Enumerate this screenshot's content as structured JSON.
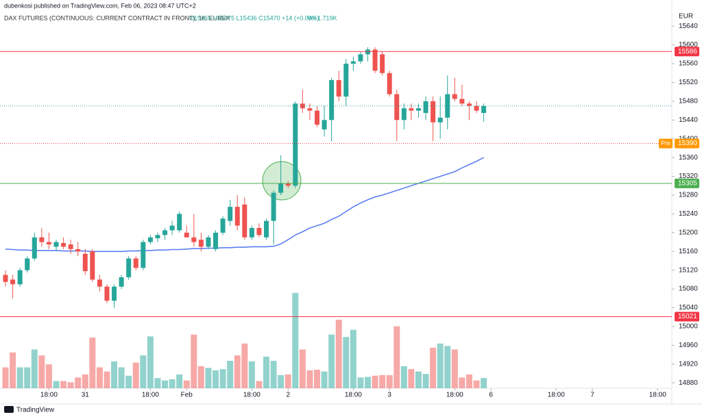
{
  "header": {
    "published": "dubenkosi published on TradingView.com, Feb 06, 2023 08:47 UTC+2",
    "symbol": "DAX FUTURES (CONTINUOUS: CURRENT CONTRACT IN FRONT), 1h, EUREX",
    "ohlc": "O15455 H15475 L15436 C15470 +14 (+0.09%)",
    "volume": "Vol 1.719K",
    "currency": "EUR",
    "brand": "TradingView"
  },
  "chart_data": {
    "type": "candlestick",
    "open": [
      15110,
      15100,
      15090,
      15120,
      15145,
      15190,
      15180,
      15170,
      15178,
      15175,
      15165,
      15155,
      15160,
      15100,
      15085,
      15055,
      15085,
      15105,
      15145,
      15125,
      15180,
      15188,
      15195,
      15205,
      15205,
      15200,
      15190,
      15185,
      15170,
      15165,
      15200,
      15225,
      15255,
      15260,
      15190,
      15210,
      15190,
      15225,
      15285,
      15305,
      15300,
      15475,
      15465,
      15460,
      15420,
      15440,
      15525,
      15490,
      15560,
      15565,
      15580,
      15590,
      15580,
      15540,
      15495,
      15440,
      15465,
      15460,
      15455,
      15480,
      15435,
      15445,
      15495,
      15485,
      15475,
      15470,
      15455
    ],
    "high": [
      15120,
      15110,
      15125,
      15150,
      15200,
      15210,
      15200,
      15185,
      15190,
      15185,
      15180,
      15165,
      15165,
      15110,
      15090,
      15090,
      15110,
      15150,
      15150,
      15185,
      15195,
      15200,
      15210,
      15225,
      15245,
      15215,
      15240,
      15200,
      15195,
      15205,
      15235,
      15270,
      15280,
      15275,
      15215,
      15220,
      15230,
      15290,
      15365,
      15310,
      15480,
      15505,
      15475,
      15470,
      15470,
      15530,
      15545,
      15570,
      15575,
      15585,
      15595,
      15595,
      15585,
      15545,
      15505,
      15475,
      15475,
      15475,
      15490,
      15490,
      15490,
      15535,
      15530,
      15515,
      15480,
      15480,
      15475
    ],
    "low": [
      15085,
      15060,
      15085,
      15115,
      15140,
      15170,
      15165,
      15160,
      15165,
      15155,
      15150,
      15110,
      15095,
      15075,
      15050,
      15040,
      15080,
      15100,
      15120,
      15120,
      15175,
      15180,
      15185,
      15195,
      15200,
      15190,
      15170,
      15160,
      15165,
      15160,
      15195,
      15215,
      15205,
      15185,
      15185,
      15190,
      15185,
      15175,
      15280,
      15295,
      15295,
      15455,
      15440,
      15425,
      15405,
      15395,
      15480,
      15470,
      15545,
      15560,
      15565,
      15540,
      15535,
      15490,
      15395,
      15420,
      15440,
      15445,
      15440,
      15395,
      15400,
      15420,
      15480,
      15470,
      15440,
      15455,
      15436
    ],
    "close": [
      15095,
      15090,
      15120,
      15145,
      15190,
      15180,
      15175,
      15180,
      15170,
      15165,
      15160,
      15118,
      15100,
      15085,
      15055,
      15085,
      15105,
      15145,
      15125,
      15180,
      15190,
      15195,
      15205,
      15215,
      15240,
      15190,
      15180,
      15170,
      15190,
      15200,
      15230,
      15255,
      15215,
      15190,
      15210,
      15195,
      15225,
      15285,
      15305,
      15300,
      15475,
      15465,
      15460,
      15430,
      15440,
      15525,
      15490,
      15560,
      15565,
      15580,
      15590,
      15545,
      15540,
      15495,
      15440,
      15465,
      15460,
      15465,
      15480,
      15435,
      15445,
      15495,
      15485,
      15475,
      15470,
      15460,
      15470
    ],
    "volume": [
      3.5,
      6,
      3.5,
      3.5,
      6.5,
      5.5,
      4,
      1.2,
      1.2,
      1,
      1.8,
      2.3,
      8.5,
      3.5,
      2.8,
      4.5,
      3.5,
      2.1,
      4.3,
      5.5,
      8.7,
      1.7,
      1.3,
      1.5,
      2.3,
      1.3,
      9,
      3.7,
      3.4,
      3,
      3.2,
      4.6,
      5.5,
      7.5,
      4.5,
      1.2,
      5.3,
      4.6,
      2.2,
      2.3,
      16,
      6.5,
      3,
      3.1,
      2.8,
      9,
      11.5,
      8.6,
      9.8,
      1.8,
      1.9,
      2.1,
      2.2,
      2.2,
      10.4,
      3.7,
      3.2,
      2.8,
      2.4,
      6.8,
      7.5,
      7.1,
      6.5,
      1.8,
      2.3,
      1.3,
      1.719
    ],
    "ma_values": [
      15165,
      15164,
      15163,
      15163,
      15162,
      15162,
      15162,
      15162,
      15161,
      15161,
      15161,
      15161,
      15160,
      15160,
      15160,
      15160,
      15160,
      15161,
      15161,
      15162,
      15162,
      15163,
      15163,
      15164,
      15164,
      15165,
      15166,
      15166,
      15167,
      15167,
      15168,
      15168,
      15169,
      15169,
      15170,
      15170,
      15170,
      15171,
      15176,
      15185,
      15195,
      15202,
      15210,
      15215,
      15220,
      15228,
      15235,
      15245,
      15255,
      15263,
      15270,
      15276,
      15280,
      15285,
      15290,
      15295,
      15300,
      15305,
      15310,
      15315,
      15320,
      15325,
      15330,
      15338,
      15345,
      15352,
      15360
    ],
    "ma_color": "#5b7ff0",
    "up_color": "#26a69a",
    "down_color": "#ef5350",
    "levels": [
      {
        "value": 15586,
        "color": "#f23645",
        "dashed": false
      },
      {
        "value": 15470,
        "color": "#26a69a",
        "dashed": true,
        "show_label": false
      },
      {
        "value": 15390,
        "color": "#f23645",
        "dashed": true,
        "label_color": "#ff9800",
        "tag": "Pre"
      },
      {
        "value": 15305,
        "color": "#4caf50",
        "dashed": false
      },
      {
        "value": 15021,
        "color": "#f23645",
        "dashed": false
      }
    ],
    "ylim": [
      14857,
      15684
    ],
    "yticks": [
      15640,
      15600,
      15560,
      15520,
      15480,
      15440,
      15400,
      15360,
      15320,
      15280,
      15240,
      15200,
      15160,
      15120,
      15080,
      15040,
      15000,
      14960,
      14920,
      14880
    ],
    "vlim": [
      0,
      20
    ],
    "xlim": [
      -0.757,
      91.96
    ],
    "xticks": [
      {
        "value": 6,
        "label": "18:00"
      },
      {
        "value": 11,
        "label": "31"
      },
      {
        "value": 20,
        "label": "18:00"
      },
      {
        "value": 25,
        "label": "Feb"
      },
      {
        "value": 34,
        "label": "18:00"
      },
      {
        "value": 39,
        "label": "2"
      },
      {
        "value": 48,
        "label": "18:00"
      },
      {
        "value": 53,
        "label": "3"
      },
      {
        "value": 62,
        "label": "18:00"
      },
      {
        "value": 67,
        "label": "6"
      },
      {
        "value": 76,
        "label": "18:00"
      },
      {
        "value": 81,
        "label": "7"
      },
      {
        "value": 90,
        "label": "18:00"
      }
    ],
    "grid": false
  }
}
